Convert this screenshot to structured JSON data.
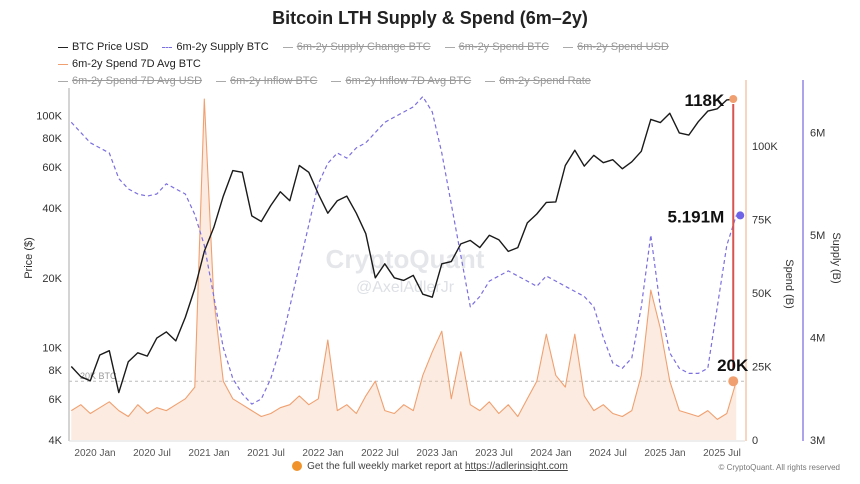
{
  "chart_data": {
    "type": "line",
    "title": "Bitcoin LTH Supply & Spend (6m–2y)",
    "legend": [
      {
        "name": "BTC Price USD",
        "active": true,
        "color": "#222222"
      },
      {
        "name": "6m-2y Supply BTC",
        "active": true,
        "color": "#7b6fe0",
        "dashed": true
      },
      {
        "name": "6m-2y Supply Change BTC",
        "active": false
      },
      {
        "name": "6m-2y Spend BTC",
        "active": false
      },
      {
        "name": "6m-2y Spend USD",
        "active": false
      },
      {
        "name": "6m-2y Spend 7D Avg BTC",
        "active": true,
        "color": "#f0a070"
      },
      {
        "name": "6m-2y Spend 7D Avg USD",
        "active": false
      },
      {
        "name": "6m-2y Inflow BTC",
        "active": false
      },
      {
        "name": "6m-2y Inflow 7D Avg BTC",
        "active": false
      },
      {
        "name": "6m-2y Spend Rate",
        "active": false
      }
    ],
    "legend_placement": "top",
    "grid": false,
    "x_ticks": [
      "2020 Jan",
      "2020 Jul",
      "2021 Jan",
      "2021 Jul",
      "2022 Jan",
      "2022 Jul",
      "2023 Jan",
      "2023 Jul",
      "2024 Jan",
      "2024 Jul",
      "2025 Jan",
      "2025 Jul"
    ],
    "axes": {
      "price": {
        "label": "Price ($)",
        "scale": "log",
        "range": [
          4000,
          130000
        ],
        "ticks": [
          "4K",
          "6K",
          "8K",
          "10K",
          "20K",
          "40K",
          "60K",
          "80K",
          "100K"
        ],
        "tick_values": [
          4000,
          6000,
          8000,
          10000,
          20000,
          40000,
          60000,
          80000,
          100000
        ]
      },
      "spend": {
        "label": "Spend (B)",
        "scale": "linear",
        "range": [
          0,
          120000
        ],
        "ticks": [
          "0",
          "25K",
          "50K",
          "75K",
          "100K"
        ],
        "tick_values": [
          0,
          25000,
          50000,
          75000,
          100000
        ]
      },
      "supply": {
        "label": "Supply (B)",
        "scale": "linear",
        "range": [
          3000000,
          6450000
        ],
        "ticks": [
          "3M",
          "4M",
          "5M",
          "6M"
        ],
        "tick_values": [
          3000000,
          4000000,
          5000000,
          6000000
        ]
      }
    },
    "months": [
      "2019-10",
      "2019-11",
      "2019-12",
      "2020-01",
      "2020-02",
      "2020-03",
      "2020-04",
      "2020-05",
      "2020-06",
      "2020-07",
      "2020-08",
      "2020-09",
      "2020-10",
      "2020-11",
      "2020-12",
      "2021-01",
      "2021-02",
      "2021-03",
      "2021-04",
      "2021-05",
      "2021-06",
      "2021-07",
      "2021-08",
      "2021-09",
      "2021-10",
      "2021-11",
      "2021-12",
      "2022-01",
      "2022-02",
      "2022-03",
      "2022-04",
      "2022-05",
      "2022-06",
      "2022-07",
      "2022-08",
      "2022-09",
      "2022-10",
      "2022-11",
      "2022-12",
      "2023-01",
      "2023-02",
      "2023-03",
      "2023-04",
      "2023-05",
      "2023-06",
      "2023-07",
      "2023-08",
      "2023-09",
      "2023-10",
      "2023-11",
      "2023-12",
      "2024-01",
      "2024-02",
      "2024-03",
      "2024-04",
      "2024-05",
      "2024-06",
      "2024-07",
      "2024-08",
      "2024-09",
      "2024-10",
      "2024-11",
      "2024-12",
      "2025-01",
      "2025-02",
      "2025-03",
      "2025-04",
      "2025-05",
      "2025-06",
      "2025-07",
      "2025-08"
    ],
    "series": [
      {
        "name": "BTC Price USD",
        "axis": "price",
        "values": [
          8300,
          7500,
          7200,
          9300,
          9700,
          6400,
          8700,
          9500,
          9200,
          11000,
          11700,
          10700,
          13500,
          18000,
          26000,
          33000,
          45000,
          58000,
          57000,
          37000,
          35000,
          41000,
          47000,
          43000,
          61000,
          57000,
          46000,
          38000,
          43000,
          45000,
          38000,
          31000,
          20000,
          23000,
          20000,
          19500,
          20500,
          17000,
          16500,
          23000,
          23500,
          28000,
          29000,
          27000,
          30500,
          29200,
          26000,
          27000,
          34500,
          37700,
          42300,
          42500,
          61000,
          71000,
          60600,
          67500,
          62700,
          64600,
          59000,
          63300,
          70200,
          96400,
          93400,
          102400,
          84300,
          82500,
          94200,
          104600,
          107100,
          117000,
          118000
        ]
      },
      {
        "name": "6m-2y Supply BTC",
        "axis": "supply",
        "values": [
          6100000,
          6000000,
          5900000,
          5850000,
          5800000,
          5550000,
          5450000,
          5400000,
          5380000,
          5400000,
          5500000,
          5450000,
          5400000,
          5200000,
          4900000,
          4400000,
          3900000,
          3600000,
          3450000,
          3350000,
          3400000,
          3600000,
          3900000,
          4300000,
          4700000,
          5100000,
          5500000,
          5700000,
          5800000,
          5750000,
          5850000,
          5900000,
          6000000,
          6100000,
          6150000,
          6200000,
          6250000,
          6350000,
          6200000,
          5800000,
          5300000,
          4800000,
          4300000,
          4400000,
          4550000,
          4600000,
          4650000,
          4600000,
          4550000,
          4500000,
          4600000,
          4550000,
          4500000,
          4450000,
          4400000,
          4300000,
          4000000,
          3750000,
          3700000,
          3800000,
          4300000,
          5000000,
          4300000,
          3850000,
          3700000,
          3650000,
          3650000,
          3700000,
          4300000,
          4900000,
          5191000
        ]
      },
      {
        "name": "6m-2y Spend 7D Avg BTC",
        "axis": "spend",
        "values": [
          10000,
          12000,
          9000,
          11000,
          13000,
          10000,
          8000,
          12000,
          9000,
          11000,
          10000,
          12000,
          14000,
          18000,
          116000,
          48000,
          20000,
          14000,
          12000,
          10000,
          8000,
          9000,
          11000,
          12000,
          15000,
          12000,
          14000,
          34000,
          10000,
          12000,
          9000,
          15000,
          20000,
          10000,
          9000,
          12000,
          10000,
          22000,
          30000,
          37000,
          14000,
          30000,
          12000,
          10000,
          13000,
          9000,
          12000,
          8000,
          14000,
          20000,
          36000,
          22000,
          18000,
          36000,
          15000,
          10000,
          12000,
          9000,
          8000,
          10000,
          22000,
          51000,
          38000,
          20000,
          10000,
          9000,
          8000,
          10000,
          7000,
          9000,
          20000
        ]
      }
    ],
    "reference_line": {
      "label": "20K BTC",
      "value": 20000,
      "axis": "spend"
    },
    "annotations": [
      {
        "text": "118K",
        "series": "BTC Price USD",
        "value": 118000
      },
      {
        "text": "5.191M",
        "series": "6m-2y Supply BTC",
        "value": 5191000
      },
      {
        "text": "20K",
        "series": "6m-2y Spend 7D Avg BTC",
        "value": 20000
      }
    ]
  },
  "watermark": {
    "brand": "CryptoQuant",
    "handle": "@AxelAdlerJr"
  },
  "footer": {
    "text": "Get the full weekly market report at ",
    "link": "https://adlerinsight.com",
    "copyright": "© CryptoQuant. All rights reserved"
  }
}
